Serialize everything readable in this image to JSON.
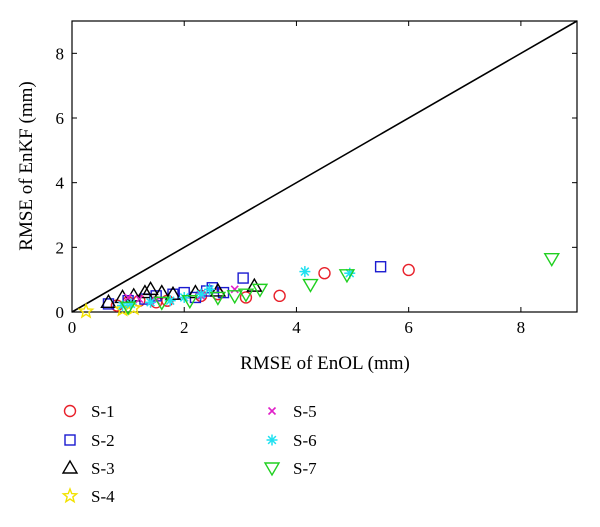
{
  "chart_data": {
    "type": "scatter",
    "xlabel": "RMSE of EnOL (mm)",
    "ylabel": "RMSE of EnKF (mm)",
    "xlim": [
      0,
      9
    ],
    "ylim": [
      0,
      9
    ],
    "xticks": [
      "0",
      "2",
      "4",
      "6",
      "8"
    ],
    "yticks": [
      "0",
      "2",
      "4",
      "6",
      "8"
    ],
    "reference_line": {
      "from": [
        0,
        0
      ],
      "to": [
        9,
        9
      ]
    },
    "grid": false,
    "legend_position": "below",
    "series": [
      {
        "name": "S-1",
        "marker": "circle",
        "color": "#e8202a",
        "points": [
          [
            0.8,
            0.2
          ],
          [
            1.0,
            0.3
          ],
          [
            1.2,
            0.35
          ],
          [
            1.5,
            0.3
          ],
          [
            1.7,
            0.35
          ],
          [
            2.3,
            0.5
          ],
          [
            2.6,
            0.55
          ],
          [
            3.1,
            0.45
          ],
          [
            3.7,
            0.5
          ],
          [
            4.5,
            1.2
          ],
          [
            6.0,
            1.3
          ]
        ]
      },
      {
        "name": "S-2",
        "marker": "square",
        "color": "#1a1ad0",
        "points": [
          [
            0.65,
            0.25
          ],
          [
            1.0,
            0.35
          ],
          [
            1.3,
            0.4
          ],
          [
            1.5,
            0.5
          ],
          [
            1.8,
            0.55
          ],
          [
            2.0,
            0.6
          ],
          [
            2.2,
            0.45
          ],
          [
            2.4,
            0.65
          ],
          [
            2.5,
            0.75
          ],
          [
            2.7,
            0.6
          ],
          [
            3.05,
            1.05
          ],
          [
            5.5,
            1.4
          ]
        ]
      },
      {
        "name": "S-3",
        "marker": "triangle-up",
        "color": "#000000",
        "points": [
          [
            0.65,
            0.3
          ],
          [
            0.9,
            0.45
          ],
          [
            1.1,
            0.5
          ],
          [
            1.3,
            0.6
          ],
          [
            1.4,
            0.7
          ],
          [
            1.6,
            0.6
          ],
          [
            1.8,
            0.55
          ],
          [
            2.2,
            0.6
          ],
          [
            2.6,
            0.65
          ],
          [
            3.25,
            0.8
          ]
        ]
      },
      {
        "name": "S-4",
        "marker": "star",
        "color": "#f2e200",
        "points": [
          [
            0.25,
            0.02
          ],
          [
            0.9,
            0.08
          ],
          [
            1.1,
            0.12
          ]
        ]
      },
      {
        "name": "S-5",
        "marker": "x",
        "color": "#e020c8",
        "points": [
          [
            1.0,
            0.45
          ],
          [
            1.2,
            0.4
          ],
          [
            1.5,
            0.35
          ],
          [
            2.3,
            0.5
          ],
          [
            2.9,
            0.7
          ]
        ]
      },
      {
        "name": "S-6",
        "marker": "asterisk",
        "color": "#1ee0f0",
        "points": [
          [
            0.9,
            0.2
          ],
          [
            1.05,
            0.25
          ],
          [
            1.4,
            0.3
          ],
          [
            1.75,
            0.35
          ],
          [
            2.0,
            0.45
          ],
          [
            2.3,
            0.55
          ],
          [
            2.45,
            0.7
          ],
          [
            4.15,
            1.25
          ],
          [
            4.95,
            1.2
          ]
        ]
      },
      {
        "name": "S-7",
        "marker": "triangle-down",
        "color": "#20d020",
        "points": [
          [
            1.0,
            0.15
          ],
          [
            1.6,
            0.3
          ],
          [
            2.1,
            0.35
          ],
          [
            2.6,
            0.45
          ],
          [
            2.9,
            0.5
          ],
          [
            3.1,
            0.55
          ],
          [
            3.35,
            0.7
          ],
          [
            4.25,
            0.85
          ],
          [
            4.9,
            1.15
          ],
          [
            8.55,
            1.65
          ]
        ]
      }
    ]
  }
}
